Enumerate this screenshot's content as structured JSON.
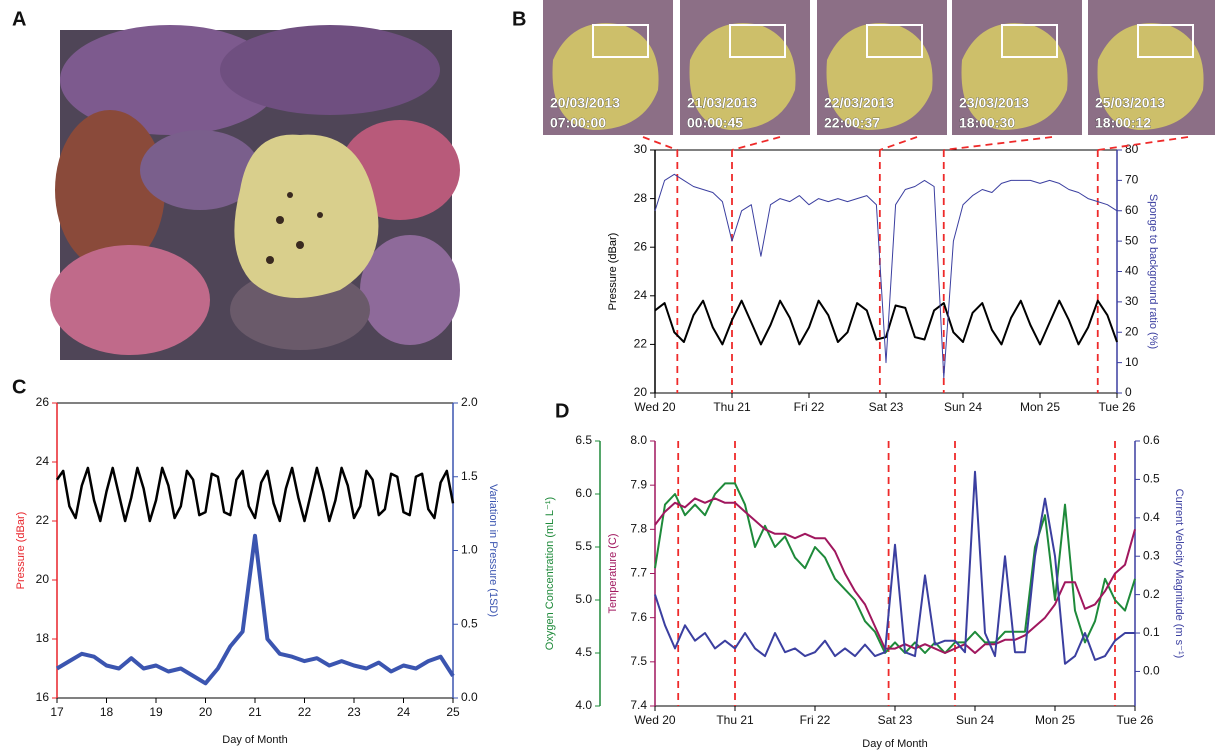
{
  "panel_labels": [
    "A",
    "B",
    "C",
    "D"
  ],
  "images": [
    {
      "date": "20/03/2013",
      "time": "07:00:00"
    },
    {
      "date": "21/03/2013",
      "time": "00:00:45"
    },
    {
      "date": "22/03/2013",
      "time": "22:00:37"
    },
    {
      "date": "23/03/2013",
      "time": "18:00:30"
    },
    {
      "date": "25/03/2013",
      "time": "18:00:12"
    }
  ],
  "chart_data": [
    {
      "type": "line",
      "ylabel": "Pressure (dBar)",
      "ycolor": "#000000",
      "y2label": "Sponge to background ratio (%)",
      "y2color": "#3b3fa0",
      "xlim": [
        20,
        26
      ],
      "xticks": [
        {
          "value": 20,
          "label": "Wed 20"
        },
        {
          "value": 21,
          "label": "Thu 21"
        },
        {
          "value": 22,
          "label": "Fri 22"
        },
        {
          "value": 23,
          "label": "Sat 23"
        },
        {
          "value": 24,
          "label": "Sun 24"
        },
        {
          "value": 25,
          "label": "Mon 25"
        },
        {
          "value": 26,
          "label": "Tue 26"
        }
      ],
      "ylim": [
        20,
        30
      ],
      "yticks": [
        20,
        22,
        24,
        26,
        28,
        30
      ],
      "y2lim": [
        0,
        80
      ],
      "y2ticks": [
        0,
        10,
        20,
        30,
        40,
        50,
        60,
        70,
        80
      ],
      "vlines": [
        20.29,
        21.0,
        22.92,
        23.75,
        25.75
      ],
      "vline_color": "#ee2a2a",
      "x": [
        20,
        20.125,
        20.25,
        20.375,
        20.5,
        20.625,
        20.75,
        20.875,
        21,
        21.125,
        21.25,
        21.375,
        21.5,
        21.625,
        21.75,
        21.875,
        22,
        22.125,
        22.25,
        22.375,
        22.5,
        22.625,
        22.75,
        22.875,
        23,
        23.125,
        23.25,
        23.375,
        23.5,
        23.625,
        23.75,
        23.875,
        24,
        24.125,
        24.25,
        24.375,
        24.5,
        24.625,
        24.75,
        24.875,
        25,
        25.125,
        25.25,
        25.375,
        25.5,
        25.625,
        25.75,
        25.875,
        26
      ],
      "series": [
        {
          "color": "#000000",
          "axis": "y",
          "width": 2,
          "values": [
            23.4,
            23.7,
            22.5,
            22.1,
            23.2,
            23.8,
            22.7,
            22.0,
            23.0,
            23.8,
            22.9,
            22.0,
            22.8,
            23.8,
            23.1,
            22.0,
            22.7,
            23.8,
            23.2,
            22.1,
            22.5,
            23.7,
            23.4,
            22.2,
            22.3,
            23.6,
            23.5,
            22.3,
            22.2,
            23.4,
            23.7,
            22.5,
            22.1,
            23.3,
            23.7,
            22.6,
            22.0,
            23.1,
            23.8,
            22.8,
            22.0,
            22.9,
            23.8,
            23.0,
            22.0,
            22.7,
            23.8,
            23.2,
            22.1
          ]
        },
        {
          "color": "#3b3fa0",
          "axis": "y2",
          "width": 1,
          "values": [
            60,
            70,
            72,
            70,
            68,
            67,
            66,
            63,
            50,
            60,
            62,
            45,
            62,
            64,
            63,
            65,
            62,
            64,
            63,
            64,
            63,
            64,
            65,
            62,
            10,
            62,
            67,
            68,
            70,
            68,
            5,
            50,
            62,
            65,
            67,
            66,
            69,
            70,
            70,
            70,
            69,
            70,
            69,
            67,
            66,
            64,
            63,
            62,
            60
          ]
        }
      ]
    },
    {
      "type": "line",
      "xlabel": "Day of Month",
      "ylabel": "Pressure (dBar)",
      "ycolor": "#e8232a",
      "y2label": "Variation in Pressure (1SD)",
      "y2color": "#3b55b0",
      "xlim": [
        17,
        25
      ],
      "xticks": [
        17,
        18,
        19,
        20,
        21,
        22,
        23,
        24,
        25
      ],
      "ylim": [
        16,
        26
      ],
      "yticks": [
        16,
        18,
        20,
        22,
        24,
        26
      ],
      "y2lim": [
        0,
        2
      ],
      "y2ticks": [
        {
          "value": 0,
          "label": "0.0"
        },
        0.5,
        {
          "value": 1,
          "label": "1.0"
        },
        1.5,
        {
          "value": 2,
          "label": "2.0"
        }
      ],
      "series": [
        {
          "color": "#000000",
          "axis": "y",
          "width": 2.5,
          "x": [
            17,
            17.125,
            17.25,
            17.375,
            17.5,
            17.625,
            17.75,
            17.875,
            18,
            18.125,
            18.25,
            18.375,
            18.5,
            18.625,
            18.75,
            18.875,
            19,
            19.125,
            19.25,
            19.375,
            19.5,
            19.625,
            19.75,
            19.875,
            20,
            20.125,
            20.25,
            20.375,
            20.5,
            20.625,
            20.75,
            20.875,
            21,
            21.125,
            21.25,
            21.375,
            21.5,
            21.625,
            21.75,
            21.875,
            22,
            22.125,
            22.25,
            22.375,
            22.5,
            22.625,
            22.75,
            22.875,
            23,
            23.125,
            23.25,
            23.375,
            23.5,
            23.625,
            23.75,
            23.875,
            24,
            24.125,
            24.25,
            24.375,
            24.5,
            24.625,
            24.75,
            24.875,
            25
          ],
          "values": [
            23.4,
            23.7,
            22.5,
            22.1,
            23.2,
            23.8,
            22.7,
            22.0,
            23.0,
            23.8,
            22.9,
            22.0,
            22.8,
            23.8,
            23.1,
            22.0,
            22.7,
            23.8,
            23.2,
            22.1,
            22.5,
            23.7,
            23.4,
            22.2,
            22.3,
            23.6,
            23.5,
            22.3,
            22.2,
            23.4,
            23.7,
            22.5,
            22.1,
            23.3,
            23.7,
            22.6,
            22.0,
            23.1,
            23.8,
            22.8,
            22.0,
            22.9,
            23.8,
            23.0,
            22.0,
            22.7,
            23.8,
            23.2,
            22.1,
            22.5,
            23.7,
            23.4,
            22.2,
            22.4,
            23.6,
            23.5,
            22.3,
            22.2,
            23.5,
            23.6,
            22.4,
            22.1,
            23.3,
            23.7,
            22.6
          ]
        },
        {
          "color": "#3b55b0",
          "axis": "y2",
          "width": 4,
          "x": [
            17,
            17.25,
            17.5,
            17.75,
            18,
            18.25,
            18.5,
            18.75,
            19,
            19.25,
            19.5,
            19.75,
            20,
            20.25,
            20.5,
            20.75,
            21,
            21.25,
            21.5,
            21.75,
            22,
            22.25,
            22.5,
            22.75,
            23,
            23.25,
            23.5,
            23.75,
            24,
            24.25,
            24.5,
            24.75,
            25
          ],
          "values": [
            0.2,
            0.25,
            0.3,
            0.28,
            0.22,
            0.2,
            0.27,
            0.2,
            0.22,
            0.18,
            0.2,
            0.15,
            0.1,
            0.2,
            0.35,
            0.45,
            1.1,
            0.4,
            0.3,
            0.28,
            0.25,
            0.27,
            0.22,
            0.25,
            0.22,
            0.2,
            0.24,
            0.18,
            0.22,
            0.2,
            0.25,
            0.28,
            0.15
          ]
        }
      ]
    },
    {
      "type": "line",
      "xlabel": "Day of Month",
      "ylabel": "Oxygen Concentration (mL L⁻¹)",
      "ycolor": "#1e8a3a",
      "y2label": "Temperature (C)",
      "y2color": "#a0175e",
      "y3label": "Current Velocity Magnitude (m s⁻¹)",
      "y3color": "#3b3fa0",
      "xlim": [
        20,
        26
      ],
      "xticks": [
        {
          "value": 20,
          "label": "Wed 20"
        },
        {
          "value": 21,
          "label": "Thu 21"
        },
        {
          "value": 22,
          "label": "Fri 22"
        },
        {
          "value": 23,
          "label": "Sat 23"
        },
        {
          "value": 24,
          "label": "Sun 24"
        },
        {
          "value": 25,
          "label": "Mon 25"
        },
        {
          "value": 26,
          "label": "Tue 26"
        }
      ],
      "ylim": [
        4,
        6.5
      ],
      "yticks": [
        {
          "value": 4,
          "label": "4.0"
        },
        4.5,
        {
          "value": 5,
          "label": "5.0"
        },
        5.5,
        {
          "value": 6,
          "label": "6.0"
        },
        6.5
      ],
      "y2lim": [
        7.4,
        8.0
      ],
      "y2ticks": [
        7.4,
        7.5,
        7.6,
        7.7,
        7.8,
        7.9,
        {
          "value": 8,
          "label": "8.0"
        }
      ],
      "y3lim": [
        -0.09,
        0.6
      ],
      "y3ticks": [
        {
          "value": 0,
          "label": "0.0"
        },
        0.1,
        0.2,
        0.3,
        0.4,
        0.5,
        0.6
      ],
      "vlines": [
        20.29,
        21.0,
        22.92,
        23.75,
        25.75
      ],
      "vline_color": "#ee2a2a",
      "x": [
        20,
        20.125,
        20.25,
        20.375,
        20.5,
        20.625,
        20.75,
        20.875,
        21,
        21.125,
        21.25,
        21.375,
        21.5,
        21.625,
        21.75,
        21.875,
        22,
        22.125,
        22.25,
        22.375,
        22.5,
        22.625,
        22.75,
        22.875,
        23,
        23.125,
        23.25,
        23.375,
        23.5,
        23.625,
        23.75,
        23.875,
        24,
        24.125,
        24.25,
        24.375,
        24.5,
        24.625,
        24.75,
        24.875,
        25,
        25.125,
        25.25,
        25.375,
        25.5,
        25.625,
        25.75,
        25.875,
        26
      ],
      "series": [
        {
          "color": "#1e8a3a",
          "axis": "y",
          "width": 2,
          "values": [
            5.3,
            5.9,
            6.0,
            5.8,
            5.9,
            5.8,
            6.0,
            6.1,
            6.1,
            5.9,
            5.5,
            5.7,
            5.5,
            5.6,
            5.4,
            5.3,
            5.5,
            5.4,
            5.2,
            5.1,
            5.0,
            4.8,
            4.7,
            4.5,
            4.6,
            4.5,
            4.6,
            4.5,
            4.6,
            4.5,
            4.6,
            4.6,
            4.7,
            4.6,
            4.6,
            4.7,
            4.7,
            4.7,
            5.5,
            5.8,
            5.0,
            5.9,
            4.9,
            4.6,
            4.8,
            5.2,
            5.0,
            4.9,
            5.2
          ]
        },
        {
          "color": "#a0175e",
          "axis": "y2",
          "width": 2,
          "values": [
            7.81,
            7.84,
            7.86,
            7.85,
            7.87,
            7.86,
            7.87,
            7.86,
            7.86,
            7.84,
            7.82,
            7.8,
            7.79,
            7.79,
            7.78,
            7.79,
            7.78,
            7.78,
            7.75,
            7.7,
            7.66,
            7.63,
            7.58,
            7.53,
            7.53,
            7.54,
            7.53,
            7.54,
            7.53,
            7.52,
            7.53,
            7.54,
            7.52,
            7.54,
            7.54,
            7.55,
            7.55,
            7.56,
            7.58,
            7.6,
            7.63,
            7.68,
            7.68,
            7.62,
            7.63,
            7.66,
            7.7,
            7.72,
            7.8
          ]
        },
        {
          "color": "#3b3fa0",
          "axis": "y3",
          "width": 2,
          "values": [
            0.2,
            0.12,
            0.06,
            0.12,
            0.08,
            0.1,
            0.06,
            0.08,
            0.06,
            0.1,
            0.06,
            0.04,
            0.1,
            0.05,
            0.06,
            0.04,
            0.05,
            0.08,
            0.04,
            0.06,
            0.04,
            0.07,
            0.04,
            0.05,
            0.33,
            0.05,
            0.04,
            0.25,
            0.07,
            0.08,
            0.08,
            0.05,
            0.52,
            0.1,
            0.04,
            0.3,
            0.05,
            0.05,
            0.3,
            0.45,
            0.3,
            0.02,
            0.04,
            0.1,
            0.03,
            0.04,
            0.08,
            0.1,
            0.1
          ]
        }
      ]
    }
  ]
}
